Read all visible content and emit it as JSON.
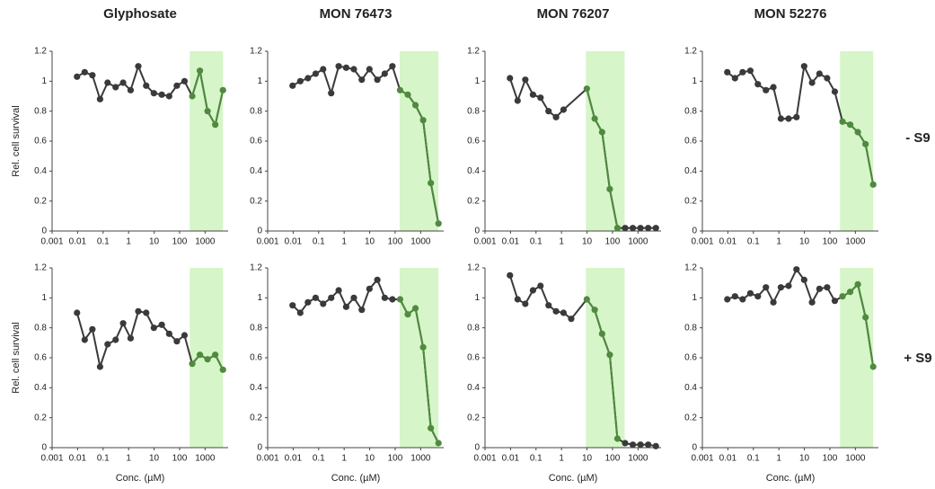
{
  "row_labels": [
    "- S9",
    "+ S9"
  ],
  "chart_data": [
    {
      "type": "line",
      "title": "Glyphosate",
      "ylabel": "Rel. cell survival",
      "log_x": true,
      "x": [
        0.0095,
        0.019,
        0.038,
        0.076,
        0.15,
        0.31,
        0.61,
        1.2,
        2.4,
        4.9,
        9.8,
        20,
        39,
        78,
        156,
        313,
        625,
        1250,
        2500,
        5000
      ],
      "values": [
        1.03,
        1.06,
        1.04,
        0.88,
        0.99,
        0.96,
        0.99,
        0.94,
        1.1,
        0.97,
        0.92,
        0.91,
        0.9,
        0.97,
        1.0,
        0.9,
        1.07,
        0.8,
        0.71,
        0.94
      ],
      "color": "#3a3a3a",
      "highlight": {
        "range": [
          250,
          5000
        ],
        "color": "#d6f5c8",
        "line_color": "#4f8a3f"
      },
      "xlim": [
        0.001,
        8000
      ],
      "xticks": [
        0.001,
        0.01,
        0.1,
        1,
        10,
        100,
        1000
      ],
      "ylim": [
        0,
        1.2
      ],
      "yticks": [
        0,
        0.2,
        0.4,
        0.6,
        0.8,
        1,
        1.2
      ]
    },
    {
      "type": "line",
      "title": "MON 76473",
      "log_x": true,
      "x": [
        0.0095,
        0.019,
        0.038,
        0.076,
        0.15,
        0.31,
        0.61,
        1.2,
        2.4,
        4.9,
        9.8,
        20,
        39,
        78,
        156,
        313,
        625,
        1250,
        2500,
        5000
      ],
      "values": [
        0.97,
        1.0,
        1.02,
        1.05,
        1.08,
        0.92,
        1.1,
        1.09,
        1.08,
        1.01,
        1.08,
        1.01,
        1.05,
        1.1,
        0.94,
        0.91,
        0.84,
        0.74,
        0.32,
        0.05
      ],
      "color": "#3a3a3a",
      "highlight": {
        "range": [
          150,
          5000
        ],
        "color": "#d6f5c8",
        "line_color": "#4f8a3f"
      },
      "xlim": [
        0.001,
        8000
      ],
      "xticks": [
        0.001,
        0.01,
        0.1,
        1,
        10,
        100,
        1000
      ],
      "ylim": [
        0,
        1.2
      ],
      "yticks": [
        0,
        0.2,
        0.4,
        0.6,
        0.8,
        1,
        1.2
      ]
    },
    {
      "type": "line",
      "title": "MON 76207",
      "log_x": true,
      "x": [
        0.0095,
        0.019,
        0.038,
        0.076,
        0.15,
        0.31,
        0.61,
        1.2,
        9.8,
        20,
        39,
        78,
        156,
        313,
        625,
        1250,
        2500,
        5000
      ],
      "values": [
        1.02,
        0.87,
        1.01,
        0.91,
        0.89,
        0.8,
        0.76,
        0.81,
        0.95,
        0.75,
        0.66,
        0.28,
        0.02,
        0.02,
        0.02,
        0.02,
        0.02,
        0.02
      ],
      "color": "#3a3a3a",
      "highlight": {
        "range": [
          9,
          300
        ],
        "color": "#d6f5c8",
        "line_color": "#4f8a3f"
      },
      "xlim": [
        0.001,
        8000
      ],
      "xticks": [
        0.001,
        0.01,
        0.1,
        1,
        10,
        100,
        1000
      ],
      "ylim": [
        0,
        1.2
      ],
      "yticks": [
        0,
        0.2,
        0.4,
        0.6,
        0.8,
        1,
        1.2
      ]
    },
    {
      "type": "line",
      "title": "MON 52276",
      "log_x": true,
      "x": [
        0.0095,
        0.019,
        0.038,
        0.076,
        0.15,
        0.31,
        0.61,
        1.2,
        2.4,
        4.9,
        9.8,
        20,
        39,
        78,
        156,
        313,
        625,
        1250,
        2500,
        5000
      ],
      "values": [
        1.06,
        1.02,
        1.06,
        1.07,
        0.98,
        0.94,
        0.96,
        0.75,
        0.75,
        0.76,
        1.1,
        0.99,
        1.05,
        1.02,
        0.93,
        0.73,
        0.71,
        0.66,
        0.58,
        0.31
      ],
      "color": "#3a3a3a",
      "highlight": {
        "range": [
          250,
          5000
        ],
        "color": "#d6f5c8",
        "line_color": "#4f8a3f"
      },
      "xlim": [
        0.001,
        8000
      ],
      "xticks": [
        0.001,
        0.01,
        0.1,
        1,
        10,
        100,
        1000
      ],
      "ylim": [
        0,
        1.2
      ],
      "yticks": [
        0,
        0.2,
        0.4,
        0.6,
        0.8,
        1,
        1.2
      ]
    },
    {
      "type": "line",
      "ylabel": "Rel. cell survival",
      "xlabel": "Conc. (µM)",
      "log_x": true,
      "x": [
        0.0095,
        0.019,
        0.038,
        0.076,
        0.15,
        0.31,
        0.61,
        1.2,
        2.4,
        4.9,
        9.8,
        20,
        39,
        78,
        156,
        313,
        625,
        1250,
        2500,
        5000
      ],
      "values": [
        0.9,
        0.72,
        0.79,
        0.54,
        0.69,
        0.72,
        0.83,
        0.73,
        0.91,
        0.9,
        0.8,
        0.82,
        0.76,
        0.71,
        0.75,
        0.56,
        0.62,
        0.59,
        0.62,
        0.52
      ],
      "color": "#3a3a3a",
      "highlight": {
        "range": [
          250,
          5000
        ],
        "color": "#d6f5c8",
        "line_color": "#4f8a3f"
      },
      "xlim": [
        0.001,
        8000
      ],
      "xticks": [
        0.001,
        0.01,
        0.1,
        1,
        10,
        100,
        1000
      ],
      "ylim": [
        0,
        1.2
      ],
      "yticks": [
        0,
        0.2,
        0.4,
        0.6,
        0.8,
        1,
        1.2
      ]
    },
    {
      "type": "line",
      "xlabel": "Conc. (µM)",
      "log_x": true,
      "x": [
        0.0095,
        0.019,
        0.038,
        0.076,
        0.15,
        0.31,
        0.61,
        1.2,
        2.4,
        4.9,
        9.8,
        20,
        39,
        78,
        156,
        313,
        625,
        1250,
        2500,
        5000
      ],
      "values": [
        0.95,
        0.9,
        0.97,
        1.0,
        0.96,
        1.0,
        1.05,
        0.94,
        1.0,
        0.92,
        1.06,
        1.12,
        1.0,
        0.99,
        0.99,
        0.89,
        0.93,
        0.67,
        0.13,
        0.03
      ],
      "color": "#3a3a3a",
      "highlight": {
        "range": [
          150,
          5000
        ],
        "color": "#d6f5c8",
        "line_color": "#4f8a3f"
      },
      "xlim": [
        0.001,
        8000
      ],
      "xticks": [
        0.001,
        0.01,
        0.1,
        1,
        10,
        100,
        1000
      ],
      "ylim": [
        0,
        1.2
      ],
      "yticks": [
        0,
        0.2,
        0.4,
        0.6,
        0.8,
        1,
        1.2
      ]
    },
    {
      "type": "line",
      "xlabel": "Conc. (µM)",
      "log_x": true,
      "x": [
        0.0095,
        0.019,
        0.038,
        0.076,
        0.15,
        0.31,
        0.61,
        1.2,
        2.4,
        9.8,
        20,
        39,
        78,
        156,
        313,
        625,
        1250,
        2500,
        5000
      ],
      "values": [
        1.15,
        0.99,
        0.96,
        1.05,
        1.08,
        0.95,
        0.91,
        0.9,
        0.86,
        0.99,
        0.92,
        0.76,
        0.62,
        0.06,
        0.03,
        0.02,
        0.02,
        0.02,
        0.01
      ],
      "color": "#3a3a3a",
      "highlight": {
        "range": [
          9,
          300
        ],
        "color": "#d6f5c8",
        "line_color": "#4f8a3f"
      },
      "xlim": [
        0.001,
        8000
      ],
      "xticks": [
        0.001,
        0.01,
        0.1,
        1,
        10,
        100,
        1000
      ],
      "ylim": [
        0,
        1.2
      ],
      "yticks": [
        0,
        0.2,
        0.4,
        0.6,
        0.8,
        1,
        1.2
      ]
    },
    {
      "type": "line",
      "xlabel": "Conc. (µM)",
      "log_x": true,
      "x": [
        0.0095,
        0.019,
        0.038,
        0.076,
        0.15,
        0.31,
        0.61,
        1.2,
        2.4,
        4.9,
        9.8,
        20,
        39,
        78,
        156,
        313,
        625,
        1250,
        2500,
        5000
      ],
      "values": [
        0.99,
        1.01,
        0.99,
        1.03,
        1.01,
        1.07,
        0.97,
        1.07,
        1.08,
        1.19,
        1.12,
        0.97,
        1.06,
        1.07,
        0.98,
        1.01,
        1.04,
        1.09,
        0.87,
        0.54
      ],
      "color": "#3a3a3a",
      "highlight": {
        "range": [
          250,
          5000
        ],
        "color": "#d6f5c8",
        "line_color": "#4f8a3f"
      },
      "xlim": [
        0.001,
        8000
      ],
      "xticks": [
        0.001,
        0.01,
        0.1,
        1,
        10,
        100,
        1000
      ],
      "ylim": [
        0,
        1.2
      ],
      "yticks": [
        0,
        0.2,
        0.4,
        0.6,
        0.8,
        1,
        1.2
      ]
    }
  ]
}
